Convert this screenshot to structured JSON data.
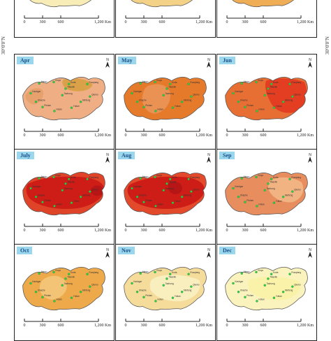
{
  "latitude_label": "30°0'0\"N",
  "scale": {
    "ticks": [
      "0",
      "300",
      "600",
      "1,200 Km"
    ]
  },
  "north_symbol": "north-arrow-icon",
  "legend_colors": {
    "very_low": "#fbf6c8",
    "low": "#f5dc9a",
    "moderate_low": "#eeb77b",
    "moderate": "#e8895a",
    "moderate_high": "#e46d2a",
    "high": "#e43a1f",
    "very_high": "#cc1414"
  },
  "stations": [
    {
      "name": "Akesu"
    },
    {
      "name": "Kuqa"
    },
    {
      "name": "Korla"
    },
    {
      "name": "Ruoqiang"
    },
    {
      "name": "Qiemo"
    },
    {
      "name": "Minfeng"
    },
    {
      "name": "Yutian"
    },
    {
      "name": "Hotan"
    },
    {
      "name": "Pishan"
    },
    {
      "name": "Shache"
    },
    {
      "name": "Kashgar"
    },
    {
      "name": "Tikanlik"
    },
    {
      "name": "Tazhong"
    }
  ],
  "panels": [
    {
      "month": "",
      "base": "#f8edb7",
      "blobs": [
        {
          "color": "#f3dc9c"
        }
      ]
    },
    {
      "month": "",
      "base": "#f3d288",
      "blobs": [
        {
          "color": "#efc477"
        }
      ]
    },
    {
      "month": "",
      "base": "#efad55",
      "blobs": [
        {
          "color": "#e89c48"
        }
      ]
    },
    {
      "month": "Apr",
      "base": "#efae84",
      "blobs": [
        {
          "color": "#e6a06c"
        },
        {
          "color": "#d9a044"
        }
      ]
    },
    {
      "month": "May",
      "base": "#e57a2b",
      "blobs": [
        {
          "color": "#ea9256"
        }
      ]
    },
    {
      "month": "Jun",
      "base": "#e86f33",
      "blobs": [
        {
          "color": "#e33a22"
        }
      ]
    },
    {
      "month": "July",
      "base": "#e04428",
      "blobs": [
        {
          "color": "#cc1a16"
        },
        {
          "color": "#b51616"
        }
      ]
    },
    {
      "month": "Aug",
      "base": "#e24a2b",
      "blobs": [
        {
          "color": "#cc1a16"
        },
        {
          "color": "#b51616"
        }
      ]
    },
    {
      "month": "Sep",
      "base": "#e78d5e",
      "blobs": [
        {
          "color": "#f1b583"
        }
      ]
    },
    {
      "month": "Oct",
      "base": "#eea94a",
      "blobs": [
        {
          "color": "#f2c577"
        }
      ]
    },
    {
      "month": "Nov",
      "base": "#f5dc9a",
      "blobs": [
        {
          "color": "#f9eec0"
        }
      ]
    },
    {
      "month": "Dec",
      "base": "#fbf3bd",
      "blobs": [
        {
          "color": "#f9f1a6"
        }
      ]
    }
  ]
}
